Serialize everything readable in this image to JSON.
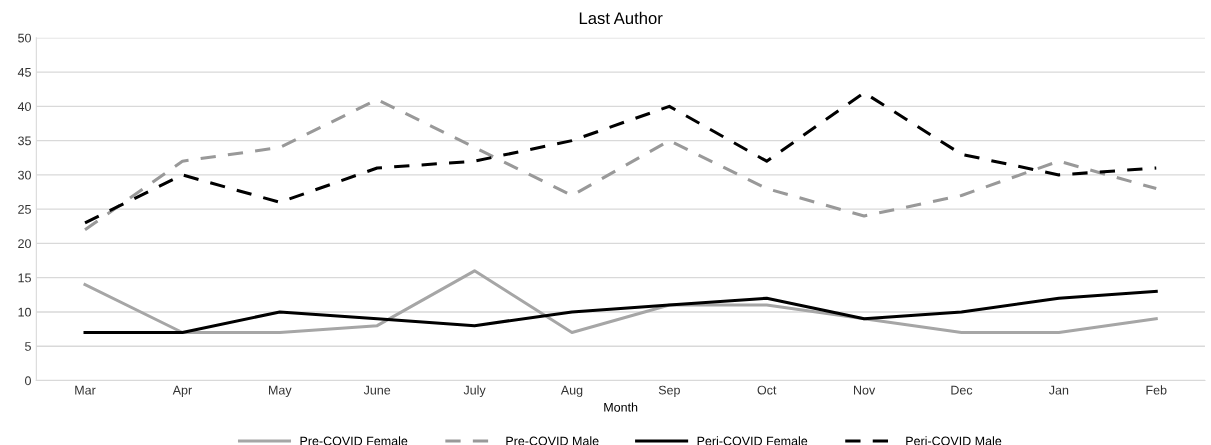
{
  "chart_data": {
    "type": "line",
    "title": "Last Author",
    "xlabel": "Month",
    "categories": [
      "Mar",
      "Apr",
      "May",
      "June",
      "July",
      "Aug",
      "Sep",
      "Oct",
      "Nov",
      "Dec",
      "Jan",
      "Feb"
    ],
    "series": [
      {
        "name": "Pre-COVID Female",
        "color": "#a6a6a6",
        "line_style": "solid",
        "values": [
          14,
          7,
          7,
          8,
          16,
          7,
          11,
          11,
          9,
          7,
          7,
          9
        ]
      },
      {
        "name": "Pre-COVID Male",
        "color": "#999999",
        "line_style": "dashed",
        "values": [
          22,
          32,
          34,
          41,
          34,
          27,
          35,
          28,
          24,
          27,
          32,
          28
        ]
      },
      {
        "name": "Peri-COVID Female",
        "color": "#000000",
        "line_style": "solid",
        "values": [
          7,
          7,
          10,
          9,
          8,
          10,
          11,
          12,
          9,
          10,
          12,
          13
        ]
      },
      {
        "name": "Peri-COVID Male",
        "color": "#000000",
        "line_style": "dashed",
        "values": [
          23,
          30,
          26,
          31,
          32,
          35,
          40,
          32,
          42,
          33,
          30,
          31
        ]
      }
    ],
    "ylim": [
      0,
      50
    ],
    "yticks": [
      0,
      5,
      10,
      15,
      20,
      25,
      30,
      35,
      40,
      45,
      50
    ],
    "grid": "y",
    "legend": "bottom",
    "marker": "none"
  }
}
